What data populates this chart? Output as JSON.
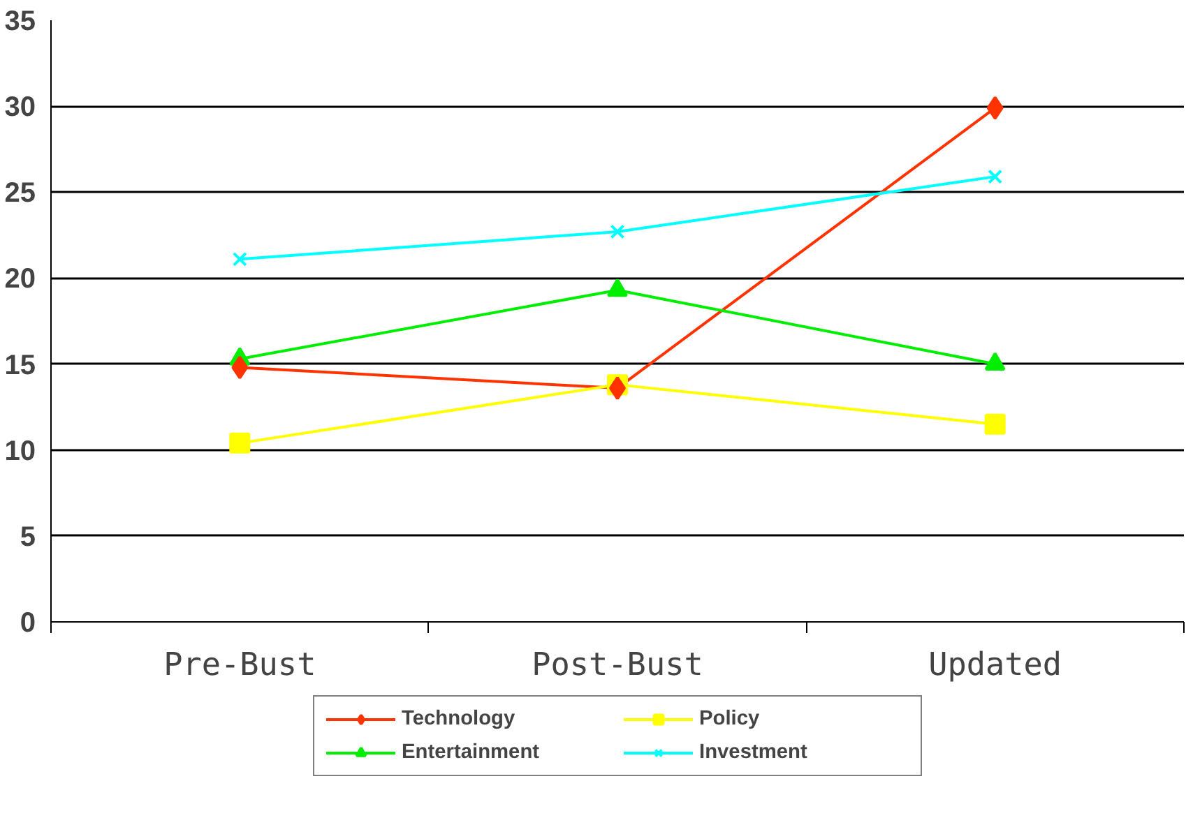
{
  "chart_data": {
    "type": "line",
    "categories": [
      "Pre-Bust",
      "Post-Bust",
      "Updated"
    ],
    "series": [
      {
        "name": "Technology",
        "color": "#ff3300",
        "marker": "diamond",
        "values": [
          14.8,
          13.6,
          29.9
        ]
      },
      {
        "name": "Policy",
        "color": "#ffff00",
        "marker": "square",
        "values": [
          10.4,
          13.8,
          11.5
        ]
      },
      {
        "name": "Entertainment",
        "color": "#00ee00",
        "marker": "triangle",
        "values": [
          15.3,
          19.3,
          15.0
        ]
      },
      {
        "name": "Investment",
        "color": "#00ffff",
        "marker": "cross",
        "values": [
          21.1,
          22.7,
          25.9
        ]
      }
    ],
    "ylim": [
      0,
      35
    ],
    "yticks": [
      0,
      5,
      10,
      15,
      20,
      25,
      30,
      35
    ],
    "grid": "y",
    "legend": "bottom",
    "line_style": "solid"
  }
}
